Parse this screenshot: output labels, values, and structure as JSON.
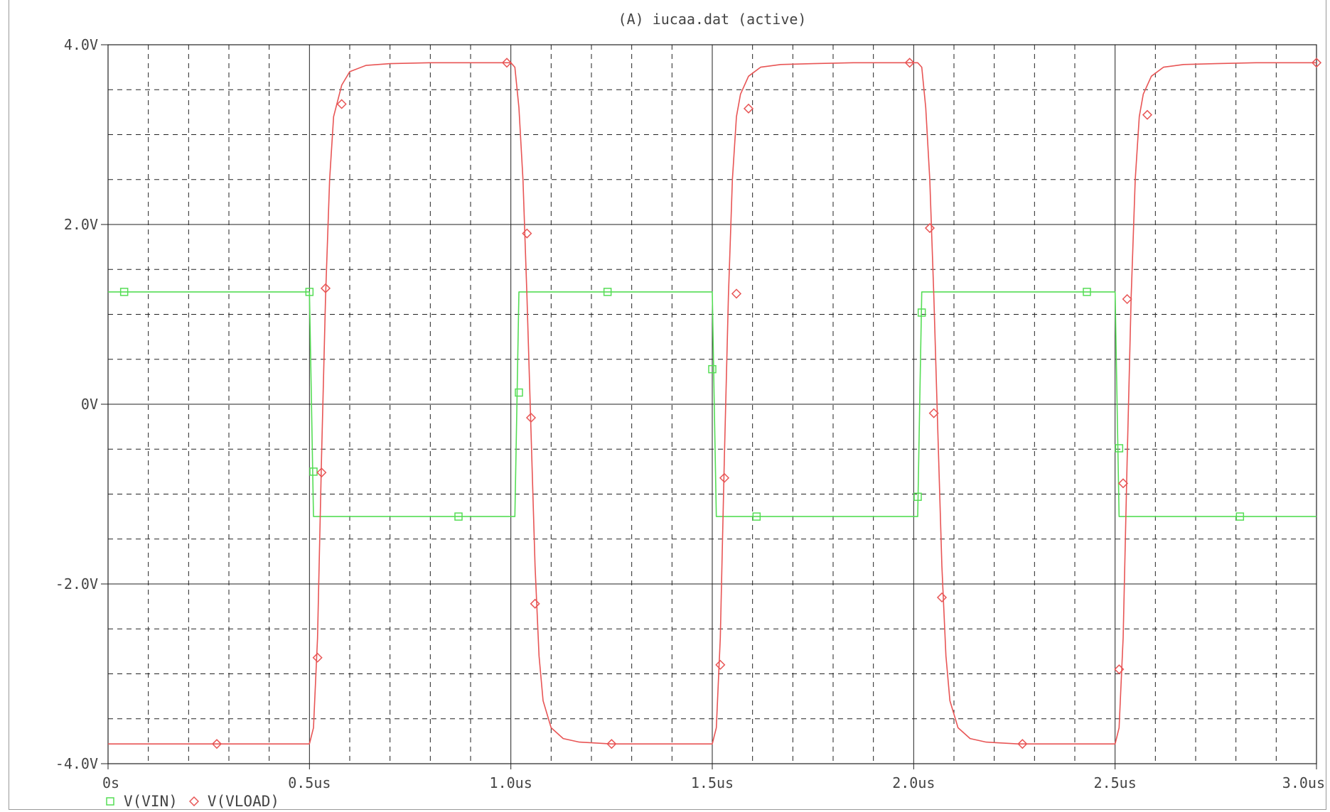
{
  "chart_data": {
    "type": "line",
    "title": "(A) iucaa.dat (active)",
    "xlabel": "",
    "ylabel": "",
    "x_ticks": [
      "0s",
      "0.5us",
      "1.0us",
      "1.5us",
      "2.0us",
      "2.5us",
      "3.0us"
    ],
    "y_ticks": [
      "4.0V",
      "2.0V",
      "0V",
      "-2.0V",
      "-4.0V"
    ],
    "xlim_us": [
      0,
      3.0
    ],
    "ylim_V": [
      -4.0,
      4.0
    ],
    "grid": true,
    "legend_position": "bottom-left",
    "series": [
      {
        "name": "V(VIN)",
        "color": "#55dd55",
        "marker": "square",
        "x_us": [
          0,
          0.5,
          0.505,
          0.51,
          1.01,
          1.015,
          1.02,
          1.5,
          1.505,
          1.51,
          2.01,
          2.015,
          2.02,
          2.5,
          2.505,
          2.51,
          3.0
        ],
        "y_V": [
          1.25,
          1.25,
          0.0,
          -1.25,
          -1.25,
          0.0,
          1.25,
          1.25,
          0.0,
          -1.25,
          -1.25,
          0.0,
          1.25,
          1.25,
          0.0,
          -1.25,
          -1.25
        ],
        "marker_x_us": [
          0.04,
          0.5,
          0.51,
          0.87,
          1.02,
          1.24,
          1.5,
          1.61,
          2.01,
          2.02,
          2.43,
          2.51,
          2.81
        ],
        "marker_y_V": [
          1.25,
          1.25,
          -0.75,
          -1.25,
          0.13,
          1.25,
          0.39,
          -1.25,
          -1.03,
          1.02,
          1.25,
          -0.49,
          -1.25
        ]
      },
      {
        "name": "V(VLOAD)",
        "color": "#e85555",
        "marker": "diamond",
        "x_us": [
          0,
          0.5,
          0.51,
          0.52,
          0.53,
          0.54,
          0.55,
          0.56,
          0.58,
          0.6,
          0.64,
          0.7,
          0.8,
          1.0,
          1.01,
          1.02,
          1.03,
          1.04,
          1.05,
          1.06,
          1.07,
          1.08,
          1.1,
          1.13,
          1.17,
          1.25,
          1.5,
          1.51,
          1.52,
          1.53,
          1.54,
          1.55,
          1.56,
          1.57,
          1.59,
          1.62,
          1.67,
          1.75,
          1.85,
          2.01,
          2.02,
          2.03,
          2.04,
          2.05,
          2.06,
          2.07,
          2.08,
          2.09,
          2.11,
          2.14,
          2.18,
          2.26,
          2.5,
          2.51,
          2.52,
          2.53,
          2.54,
          2.55,
          2.56,
          2.57,
          2.59,
          2.62,
          2.67,
          2.75,
          2.85,
          3.0
        ],
        "y_V": [
          -3.78,
          -3.78,
          -3.6,
          -2.6,
          -0.6,
          1.2,
          2.5,
          3.2,
          3.55,
          3.7,
          3.77,
          3.79,
          3.8,
          3.8,
          3.75,
          3.3,
          2.5,
          1.2,
          -0.3,
          -1.8,
          -2.8,
          -3.3,
          -3.6,
          -3.72,
          -3.76,
          -3.78,
          -3.78,
          -3.6,
          -2.6,
          -0.6,
          1.2,
          2.5,
          3.2,
          3.45,
          3.65,
          3.75,
          3.78,
          3.79,
          3.8,
          3.8,
          3.75,
          3.3,
          2.5,
          1.2,
          -0.3,
          -1.8,
          -2.8,
          -3.3,
          -3.6,
          -3.72,
          -3.76,
          -3.78,
          -3.78,
          -3.6,
          -2.6,
          -0.6,
          1.2,
          2.5,
          3.2,
          3.45,
          3.65,
          3.75,
          3.78,
          3.79,
          3.8,
          3.8
        ],
        "marker_x_us": [
          0.27,
          0.52,
          0.53,
          0.54,
          0.58,
          0.99,
          1.04,
          1.05,
          1.06,
          1.25,
          1.52,
          1.53,
          1.56,
          1.59,
          1.99,
          2.04,
          2.05,
          2.07,
          2.27,
          2.51,
          2.52,
          2.53,
          2.58,
          3.0
        ],
        "marker_y_V": [
          -3.78,
          -2.82,
          -0.76,
          1.29,
          3.34,
          3.8,
          1.9,
          -0.15,
          -2.22,
          -3.78,
          -2.9,
          -0.82,
          1.23,
          3.29,
          3.8,
          1.96,
          -0.1,
          -2.15,
          -3.78,
          -2.95,
          -0.88,
          1.17,
          3.22,
          3.8
        ]
      }
    ]
  }
}
